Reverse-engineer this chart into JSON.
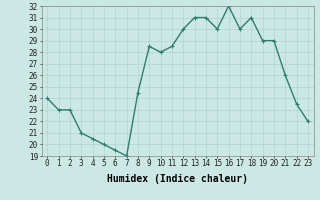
{
  "x": [
    0,
    1,
    2,
    3,
    4,
    5,
    6,
    7,
    8,
    9,
    10,
    11,
    12,
    13,
    14,
    15,
    16,
    17,
    18,
    19,
    20,
    21,
    22,
    23
  ],
  "y": [
    24,
    23,
    23,
    21,
    20.5,
    20,
    19.5,
    19,
    24.5,
    28.5,
    28,
    28.5,
    30,
    31,
    31,
    30,
    32,
    30,
    31,
    29,
    29,
    26,
    23.5,
    22
  ],
  "line_color": "#2e7d6e",
  "marker": "+",
  "marker_size": 3,
  "marker_lw": 0.8,
  "bg_color": "#cce8e4",
  "grid_color": "#b0d4ce",
  "xlabel": "Humidex (Indice chaleur)",
  "ylim": [
    19,
    32
  ],
  "xlim": [
    -0.5,
    23.5
  ],
  "yticks": [
    19,
    20,
    21,
    22,
    23,
    24,
    25,
    26,
    27,
    28,
    29,
    30,
    31,
    32
  ],
  "xticks": [
    0,
    1,
    2,
    3,
    4,
    5,
    6,
    7,
    8,
    9,
    10,
    11,
    12,
    13,
    14,
    15,
    16,
    17,
    18,
    19,
    20,
    21,
    22,
    23
  ],
  "tick_fontsize": 5.5,
  "xlabel_fontsize": 7,
  "line_width": 1.0
}
